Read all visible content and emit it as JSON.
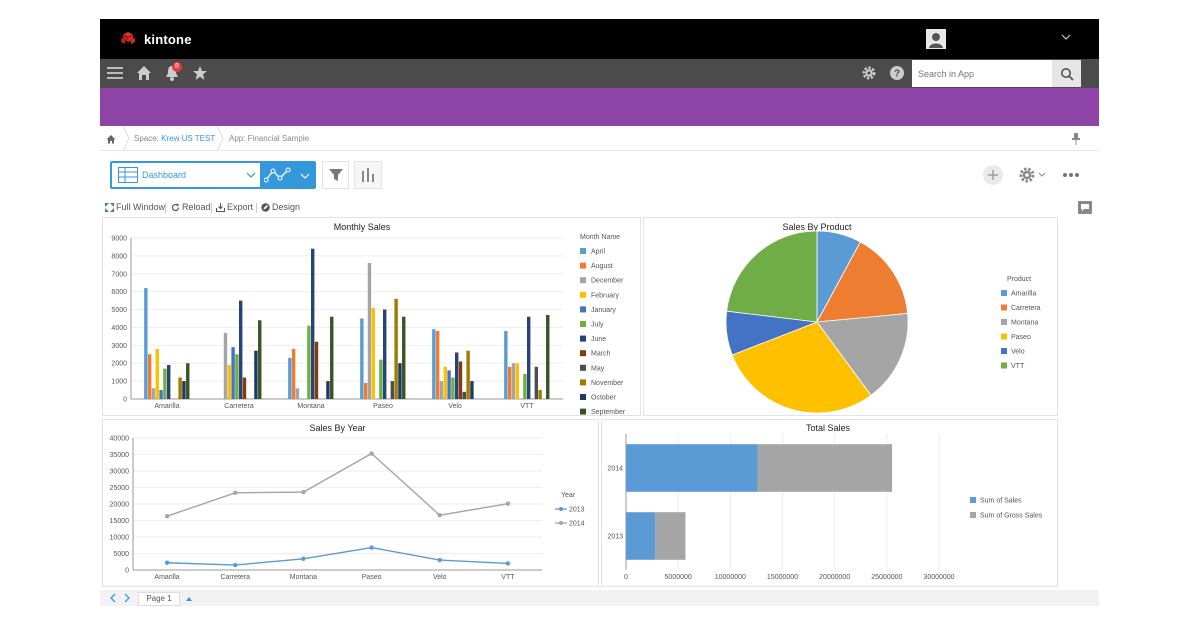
{
  "app": {
    "logo_text": "kintone",
    "user_name": ""
  },
  "nav": {
    "notification_count": "8",
    "search_placeholder": "Search in App"
  },
  "colors": {
    "accent": "#3498db",
    "header_band": "#8e44a6",
    "topbar": "#000000",
    "navbar": "#4b4b4b"
  },
  "breadcrumb": {
    "space_prefix": "Space:",
    "space_name": "Krew US TEST",
    "app_label": "App: Financial Sample"
  },
  "toolbar": {
    "view_label": "Dashboard"
  },
  "actions": {
    "full_window": "Full Window",
    "reload": "Reload",
    "export": "Export",
    "design": "Design"
  },
  "footer": {
    "page_label": "Page 1"
  },
  "icons": [
    "kintone-logo-icon",
    "menu-icon",
    "home-icon",
    "bell-icon",
    "star-icon",
    "gear-icon",
    "help-icon",
    "search-icon",
    "chevron-down-icon",
    "table-view-icon",
    "graph-icon",
    "filter-icon",
    "bar-chart-icon",
    "plus-icon",
    "ellipsis-icon",
    "expand-icon",
    "reload-icon",
    "export-icon",
    "design-icon",
    "comment-icon",
    "prev-icon",
    "next-icon",
    "pin-icon"
  ],
  "chart_data": [
    {
      "type": "bar",
      "title": "Monthly Sales",
      "categories": [
        "Amarilla",
        "Carretera",
        "Montana",
        "Paseo",
        "Velo",
        "VTT"
      ],
      "ylim": [
        0,
        9000
      ],
      "yticks": [
        "0",
        "1000",
        "2000",
        "3000",
        "4000",
        "5000",
        "6000",
        "7000",
        "8000",
        "9000"
      ],
      "legend_title": "Month Name",
      "legend_position": "right",
      "series": [
        {
          "name": "April",
          "color": "#5b9bd5",
          "values": [
            6200,
            0,
            2300,
            4500,
            3900,
            3800
          ]
        },
        {
          "name": "August",
          "color": "#ed7d31",
          "values": [
            2500,
            0,
            2800,
            900,
            3800,
            1800
          ]
        },
        {
          "name": "December",
          "color": "#a5a5a5",
          "values": [
            600,
            3700,
            600,
            7600,
            1000,
            2000
          ]
        },
        {
          "name": "February",
          "color": "#ffc000",
          "values": [
            2800,
            1900,
            0,
            5100,
            1800,
            2000
          ]
        },
        {
          "name": "January",
          "color": "#4472c4",
          "values": [
            500,
            2900,
            0,
            0,
            1600,
            0
          ]
        },
        {
          "name": "July",
          "color": "#70ad47",
          "values": [
            1700,
            2500,
            4100,
            2200,
            1200,
            1400
          ]
        },
        {
          "name": "June",
          "color": "#264478",
          "values": [
            1900,
            5500,
            8400,
            5000,
            2600,
            4600
          ]
        },
        {
          "name": "March",
          "color": "#843c0c",
          "values": [
            0,
            1200,
            3200,
            0,
            2100,
            0
          ]
        },
        {
          "name": "May",
          "color": "#4d4d4d",
          "values": [
            0,
            0,
            0,
            1000,
            400,
            1800
          ]
        },
        {
          "name": "November",
          "color": "#9e7a00",
          "values": [
            1200,
            0,
            0,
            5600,
            2700,
            500
          ]
        },
        {
          "name": "October",
          "color": "#203864",
          "values": [
            1000,
            2700,
            1000,
            2000,
            1000,
            0
          ]
        },
        {
          "name": "September",
          "color": "#375623",
          "values": [
            2000,
            4400,
            4600,
            4600,
            0,
            4700
          ]
        }
      ]
    },
    {
      "type": "pie",
      "title": "Sales By Product",
      "legend_title": "Product",
      "legend_position": "right",
      "slices": [
        {
          "name": "Amarilla",
          "color": "#5b9bd5",
          "value": 7.9
        },
        {
          "name": "Carretera",
          "color": "#ed7d31",
          "value": 15.6
        },
        {
          "name": "Montana",
          "color": "#a5a5a5",
          "value": 16.4
        },
        {
          "name": "Paseo",
          "color": "#ffc000",
          "value": 29.2
        },
        {
          "name": "Velo",
          "color": "#4472c4",
          "value": 7.8
        },
        {
          "name": "VTT",
          "color": "#70ad47",
          "value": 23.1
        }
      ]
    },
    {
      "type": "line",
      "title": "Sales By Year",
      "categories": [
        "Amarilla",
        "Carretera",
        "Montana",
        "Paseo",
        "Velo",
        "VTT"
      ],
      "ylim": [
        0,
        40000
      ],
      "yticks": [
        "0",
        "5000",
        "10000",
        "15000",
        "20000",
        "25000",
        "30000",
        "35000",
        "40000"
      ],
      "legend_title": "Year",
      "legend_position": "right",
      "series": [
        {
          "name": "2013",
          "color": "#5b9bd5",
          "values": [
            2200,
            1500,
            3400,
            6800,
            3000,
            2000
          ]
        },
        {
          "name": "2014",
          "color": "#a5a5a5",
          "values": [
            16300,
            23400,
            23600,
            35300,
            16600,
            20100
          ]
        }
      ]
    },
    {
      "type": "bar",
      "orientation": "horizontal",
      "stacked": true,
      "title": "Total Sales",
      "categories": [
        "2014",
        "2013"
      ],
      "xlim": [
        0,
        30000000
      ],
      "xticks": [
        "0",
        "5000000",
        "10000000",
        "15000000",
        "20000000",
        "25000000",
        "30000000"
      ],
      "legend_position": "right",
      "series": [
        {
          "name": "Sum of Sales",
          "color": "#5b9bd5",
          "values": [
            12600000,
            2800000
          ]
        },
        {
          "name": "Sum of Gross Sales",
          "color": "#a5a5a5",
          "values": [
            12900000,
            2900000
          ]
        }
      ]
    }
  ]
}
